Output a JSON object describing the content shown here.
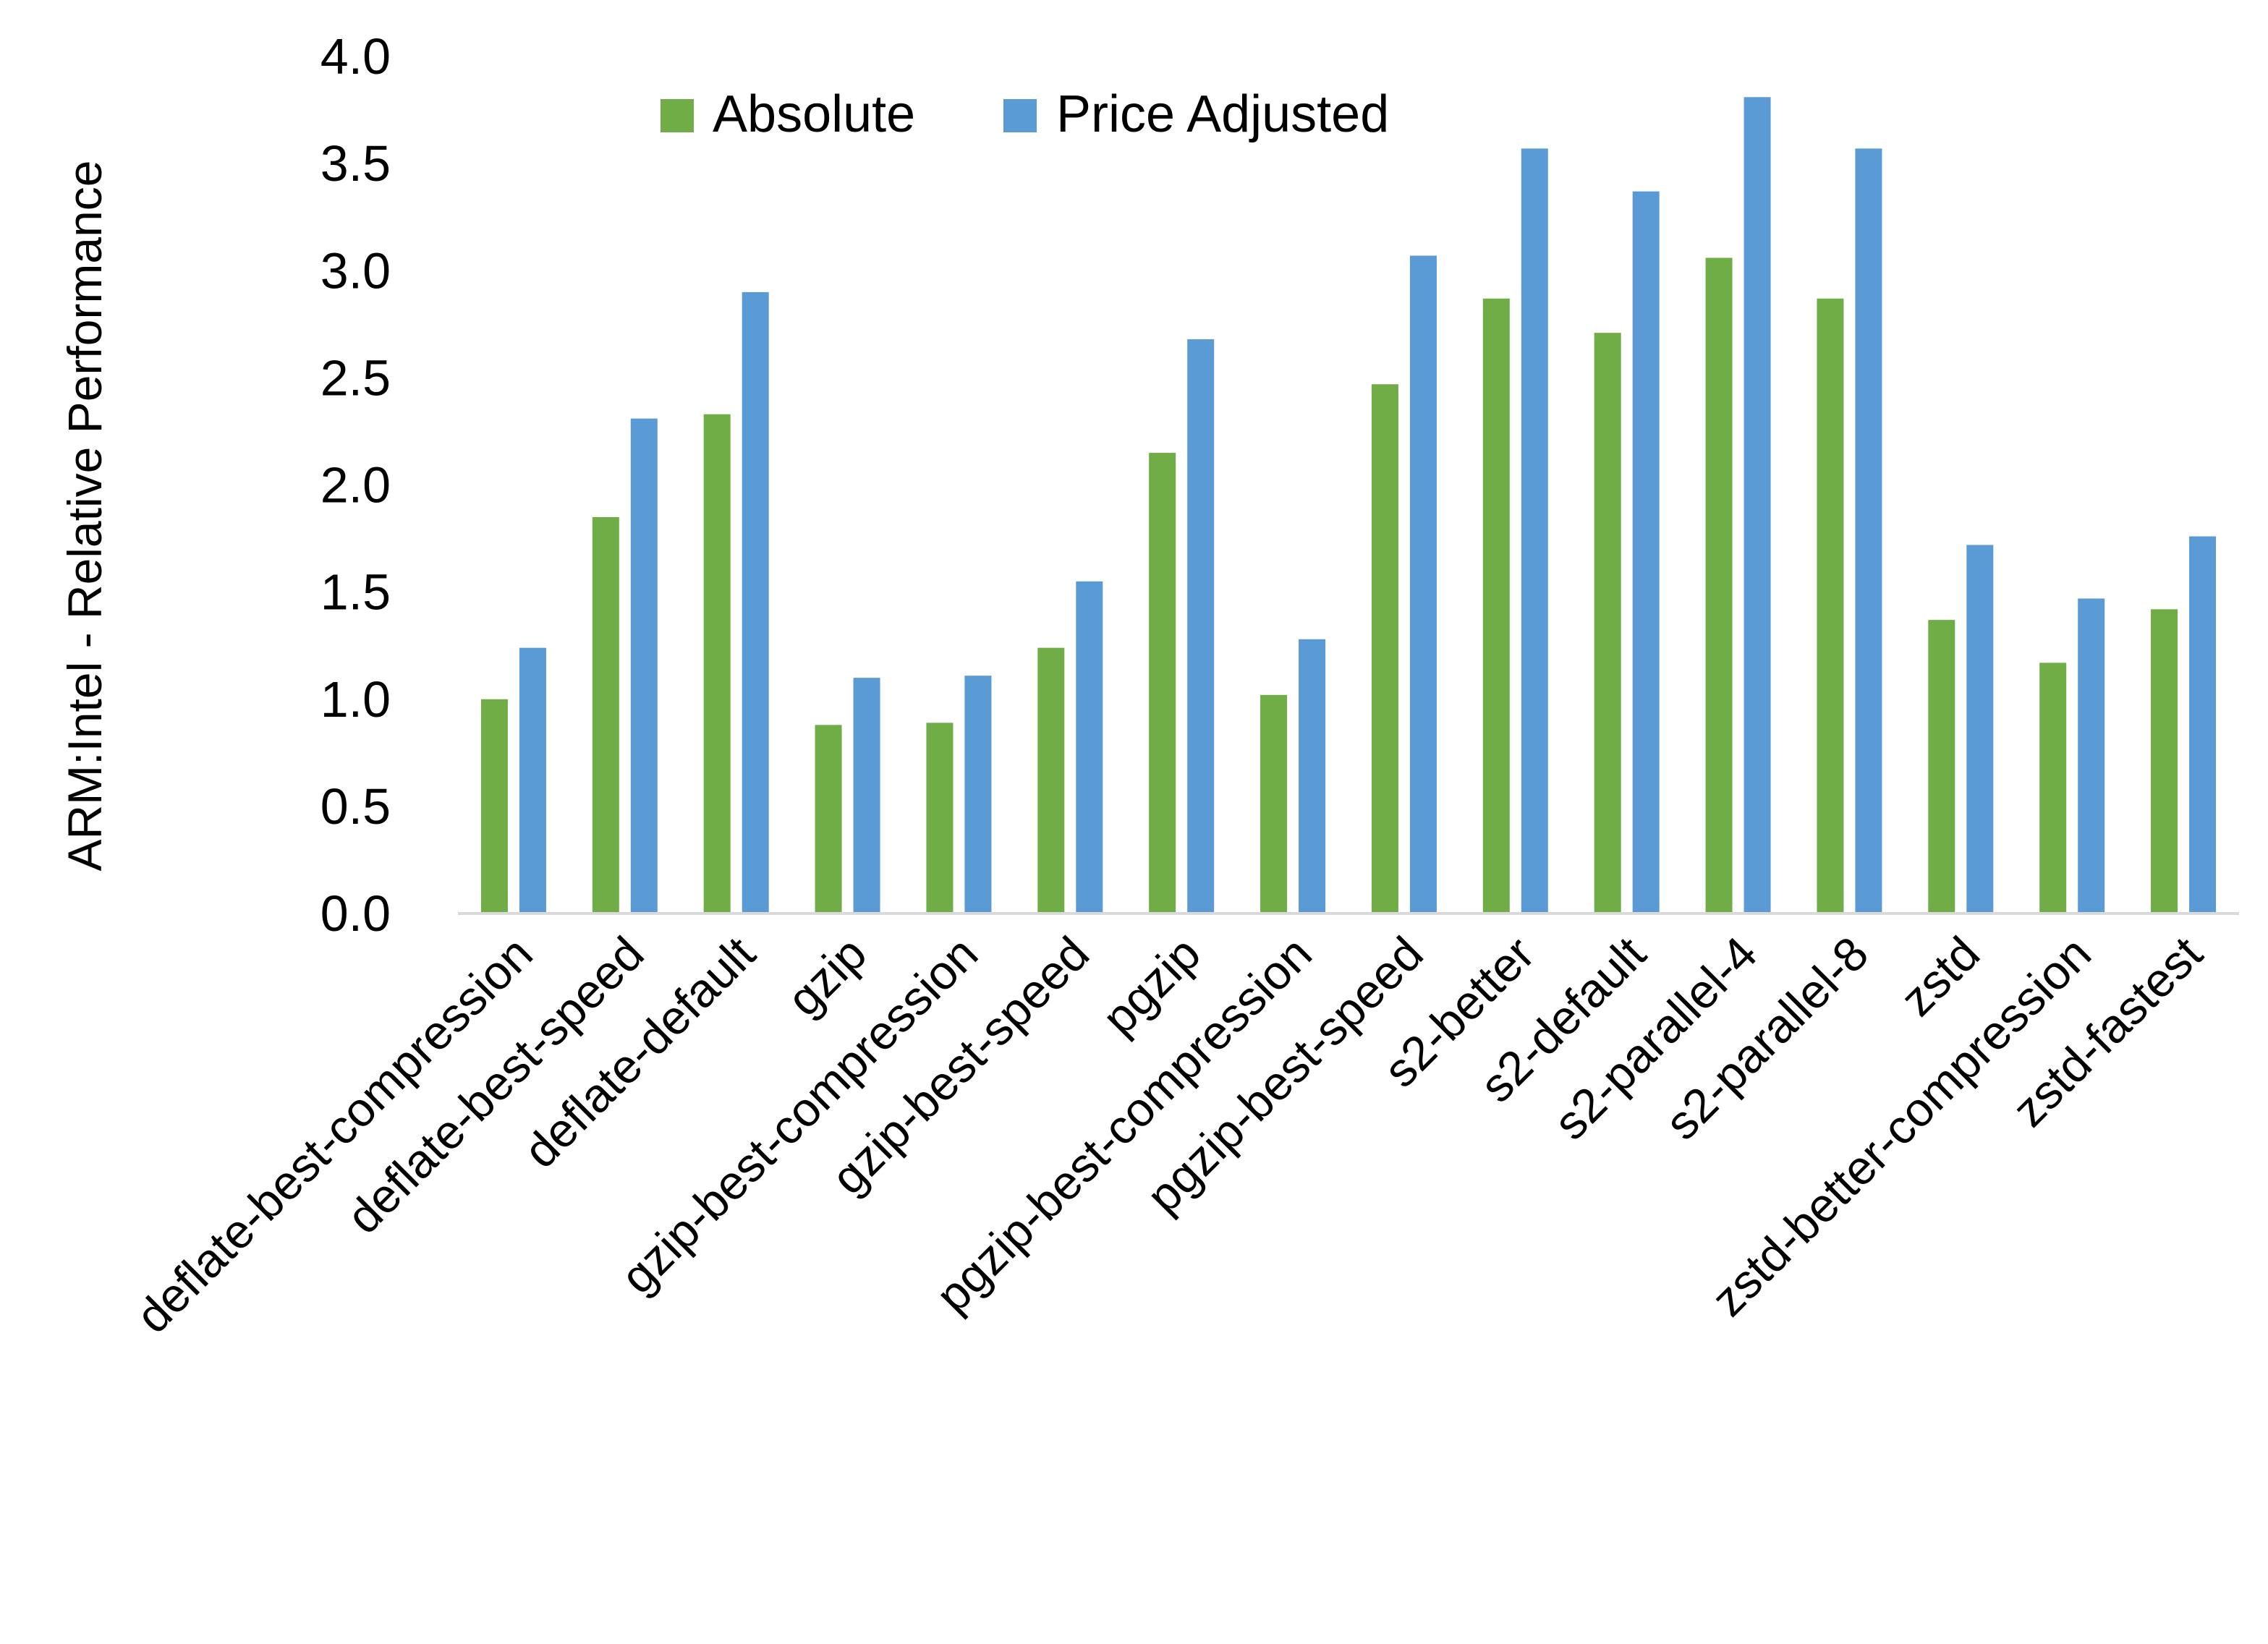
{
  "chart_data": {
    "type": "bar",
    "title": "",
    "xlabel": "",
    "ylabel": "ARM:Intel - Relative Performance",
    "ylim": [
      0,
      4.0
    ],
    "yticks": [
      "0.0",
      "0.5",
      "1.0",
      "1.5",
      "2.0",
      "2.5",
      "3.0",
      "3.5",
      "4.0"
    ],
    "grid": false,
    "legend_position": "top",
    "categories": [
      "deflate-best-compression",
      "deflate-best-speed",
      "deflate-default",
      "gzip",
      "gzip-best-compression",
      "gzip-best-speed",
      "pgzip",
      "pgzip-best-compression",
      "pgzip-best-speed",
      "s2-better",
      "s2-default",
      "s2-parallel-4",
      "s2-parallel-8",
      "zstd",
      "zstd-better-compression",
      "zstd-fastest"
    ],
    "series": [
      {
        "name": "Absolute",
        "color": "#70AD47",
        "values": [
          1.0,
          1.85,
          2.33,
          0.88,
          0.89,
          1.24,
          2.15,
          1.02,
          2.47,
          2.87,
          2.71,
          3.06,
          2.87,
          1.37,
          1.17,
          1.42
        ]
      },
      {
        "name": "Price Adjusted",
        "color": "#5B9BD5",
        "values": [
          1.24,
          2.31,
          2.9,
          1.1,
          1.11,
          1.55,
          2.68,
          1.28,
          3.07,
          3.57,
          3.37,
          3.81,
          3.57,
          1.72,
          1.47,
          1.76
        ]
      }
    ]
  }
}
